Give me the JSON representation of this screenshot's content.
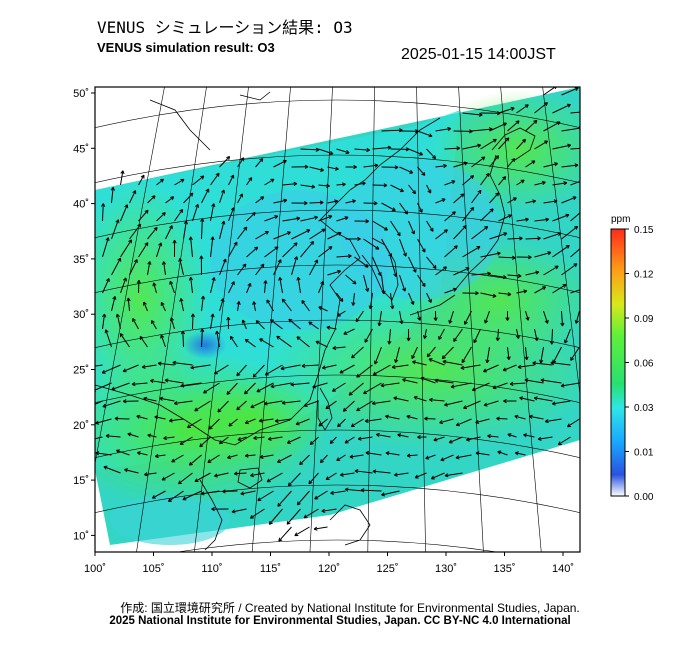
{
  "header": {
    "title_jp": "VENUS シミュレーション結果: O3",
    "title_en": "VENUS simulation result: O3",
    "timestamp": "2025-01-15 14:00JST"
  },
  "map": {
    "lon_ticks": [
      "100˚",
      "105˚",
      "110˚",
      "115˚",
      "120˚",
      "125˚",
      "130˚",
      "135˚",
      "140˚"
    ],
    "lat_ticks": [
      "50˚",
      "45˚",
      "40˚",
      "35˚",
      "30˚",
      "25˚",
      "20˚",
      "15˚",
      "10˚"
    ],
    "lon_range": [
      100,
      141
    ],
    "lat_range": [
      9,
      51
    ],
    "land_color": "#ffffff",
    "ocean_color": "#ffffff"
  },
  "colorbar": {
    "unit": "ppm",
    "ticks": [
      "0.15",
      "0.12",
      "0.09",
      "0.06",
      "0.03",
      "0.01",
      "0.00"
    ],
    "colors": [
      "#ffffff",
      "#2a52e0",
      "#18a6ff",
      "#2fe6e6",
      "#28e070",
      "#5ef03a",
      "#d8e81a",
      "#ff9a18",
      "#ff2c1a"
    ]
  },
  "footer": {
    "credit": "作成: 国立環境研究所 / Created by National Institute for Environmental Studies, Japan.",
    "copyright": "2025 National Institute for Environmental Studies, Japan. CC BY-NC 4.0 International"
  }
}
